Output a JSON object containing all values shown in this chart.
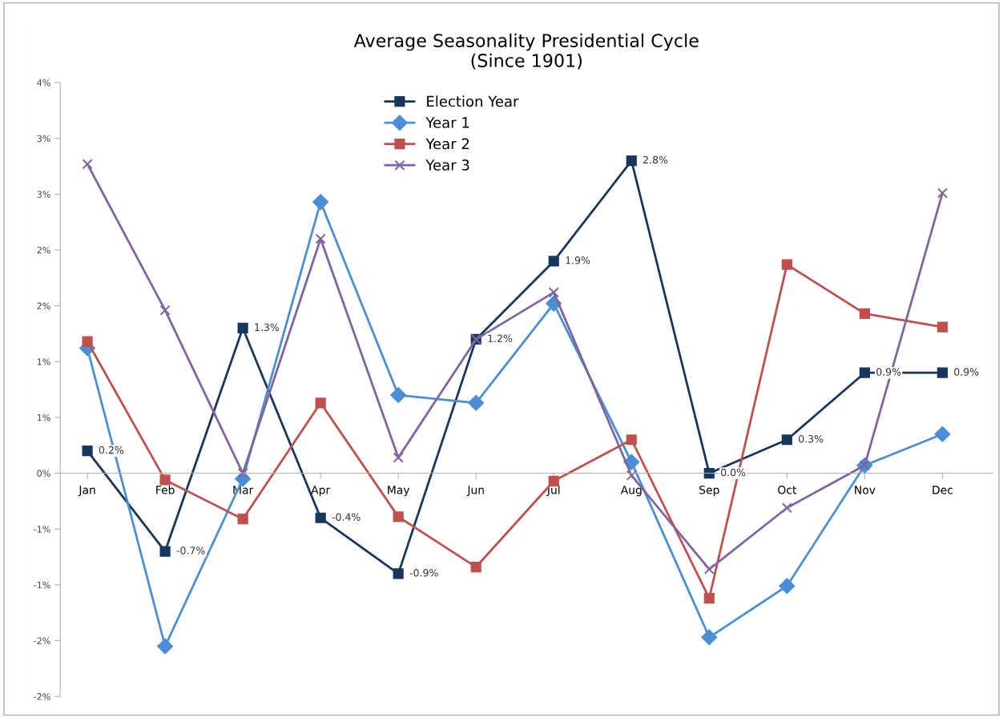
{
  "chart_data": {
    "type": "line",
    "title": "Average Seasonality Presidential Cycle\n(Since 1901)",
    "categories": [
      "Jan",
      "Feb",
      "Mar",
      "Apr",
      "May",
      "Jun",
      "Jul",
      "Aug",
      "Sep",
      "Oct",
      "Nov",
      "Dec"
    ],
    "series": [
      {
        "name": "Election Year",
        "color": "#17375e",
        "marker": "square",
        "values": [
          0.2,
          -0.7,
          1.3,
          -0.4,
          -0.9,
          1.2,
          1.9,
          2.8,
          0.0,
          0.3,
          0.9,
          0.9
        ],
        "value_labels": [
          "0.2%",
          "-0.7%",
          "1.3%",
          "-0.4%",
          "-0.9%",
          "1.2%",
          "1.9%",
          "2.8%",
          "0.0%",
          "0.3%",
          "0.9%",
          "0.9%"
        ]
      },
      {
        "name": "Year 1",
        "color": "#4a8fd6",
        "marker": "diamond",
        "values": [
          1.12,
          -1.55,
          -0.05,
          2.43,
          0.7,
          0.63,
          1.52,
          0.1,
          -1.47,
          -1.01,
          0.07,
          0.35
        ]
      },
      {
        "name": "Year 2",
        "color": "#c0504d",
        "marker": "square",
        "values": [
          1.18,
          -0.06,
          -0.41,
          0.63,
          -0.39,
          -0.84,
          -0.07,
          0.3,
          -1.12,
          1.87,
          1.43,
          1.31
        ]
      },
      {
        "name": "Year 3",
        "color": "#8064a2",
        "marker": "cross",
        "values": [
          2.77,
          1.46,
          0.0,
          2.1,
          0.14,
          1.2,
          1.62,
          -0.02,
          -0.86,
          -0.31,
          0.07,
          2.51
        ]
      }
    ],
    "ylim": [
      -2.0,
      3.5
    ],
    "yticks": [
      {
        "value": 3.5,
        "label": "4%"
      },
      {
        "value": 3.0,
        "label": "3%"
      },
      {
        "value": 2.5,
        "label": "3%"
      },
      {
        "value": 2.0,
        "label": "2%"
      },
      {
        "value": 1.5,
        "label": "2%"
      },
      {
        "value": 1.0,
        "label": "1%"
      },
      {
        "value": 0.5,
        "label": "1%"
      },
      {
        "value": 0,
        "label": "0%"
      },
      {
        "value": -0.5,
        "label": "-1%"
      },
      {
        "value": -1.0,
        "label": "-1%"
      },
      {
        "value": -1.5,
        "label": "-2%"
      },
      {
        "value": -2.0,
        "label": "-2%"
      }
    ],
    "grid": false,
    "legend": "top",
    "line_style": "solid"
  }
}
